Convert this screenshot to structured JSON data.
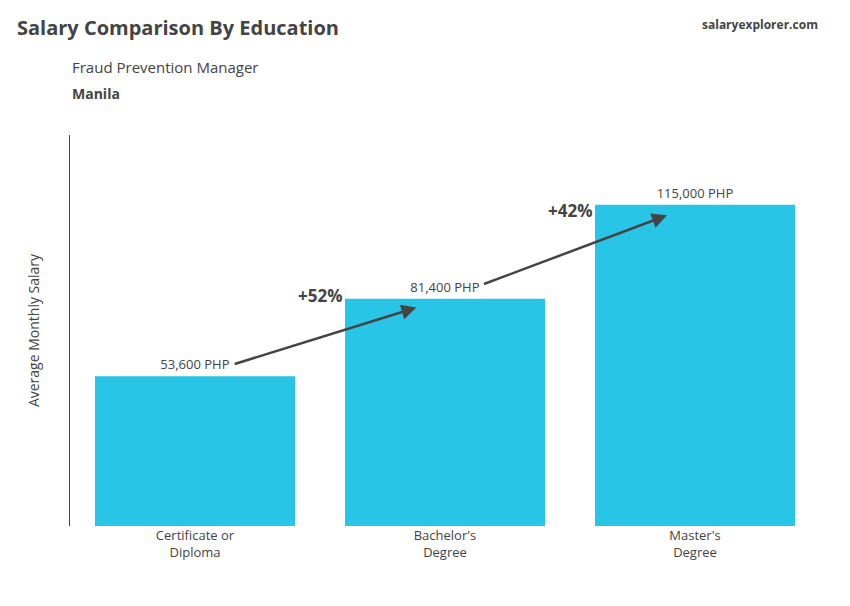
{
  "chart_data": {
    "type": "bar",
    "title": "Salary Comparison By Education",
    "subtitle": "Fraud Prevention Manager",
    "categories": [
      "Certificate or\nDiploma",
      "Bachelor's\nDegree",
      "Master's\nDegree"
    ],
    "values": [
      53600,
      81400,
      115000
    ],
    "value_labels": [
      "53,600 PHP",
      "81,400 PHP",
      "115,000 PHP"
    ],
    "data_labels": true,
    "color": "#29c5e6",
    "y_label": "Average Monthly Salary",
    "annotations": [
      "+52%",
      "+42%",
      "Manila",
      "salary",
      "explorer.com"
    ],
    "ylim": [
      0,
      140000
    ],
    "tick_labels": "x",
    "grid": false
  }
}
